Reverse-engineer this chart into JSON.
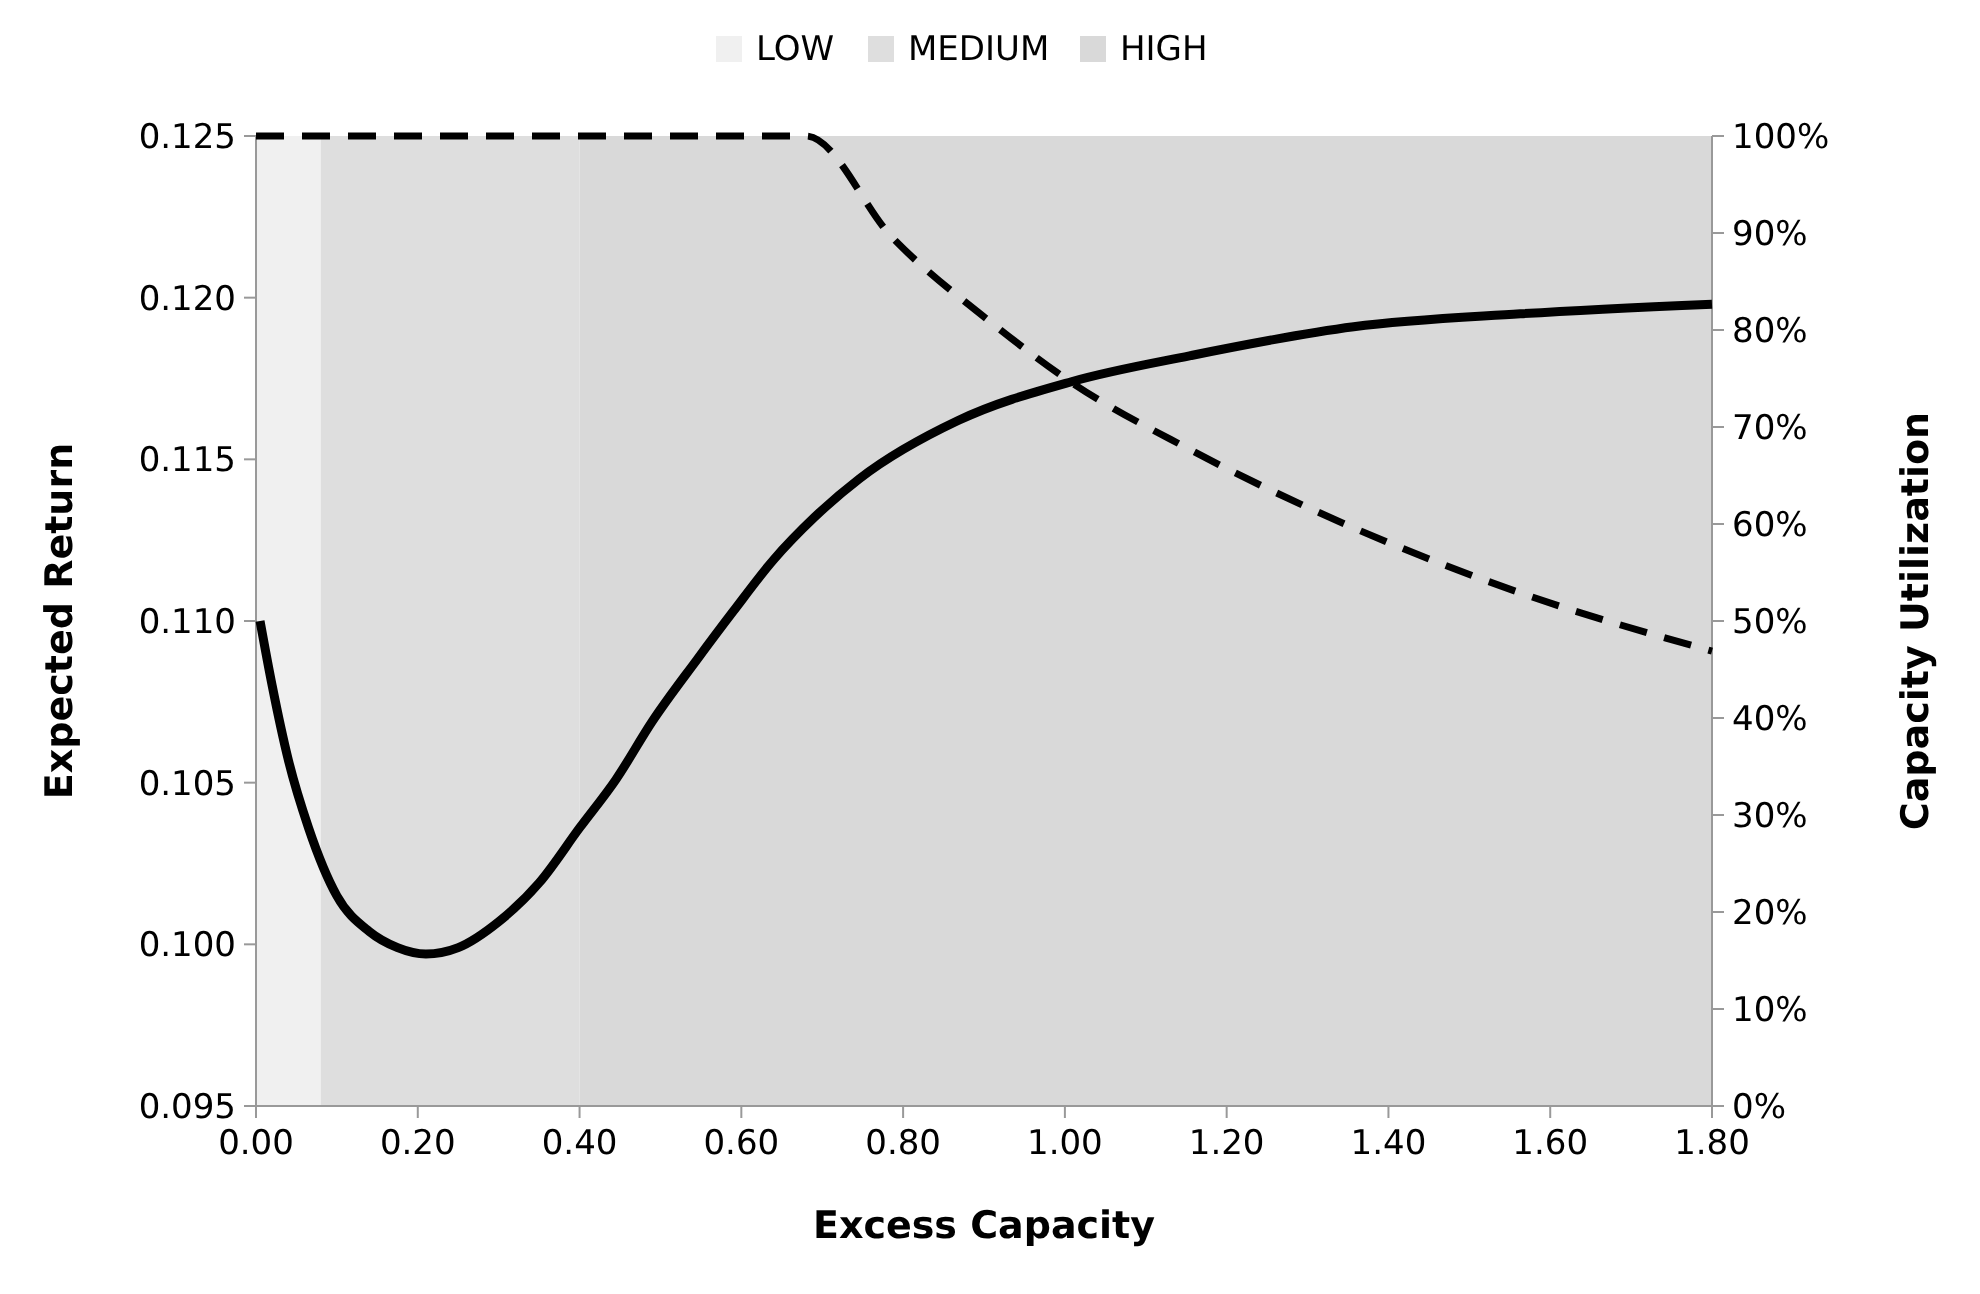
{
  "chart_data": {
    "type": "line",
    "xlabel": "Excess Capacity",
    "ylabel": "Expected Return",
    "y2label": "Capacity Utilization",
    "xlim": [
      0,
      1.8
    ],
    "ylim": [
      0.095,
      0.125
    ],
    "y2lim": [
      0,
      100
    ],
    "xticks": [
      {
        "value": 0,
        "label": "0.00"
      },
      {
        "value": 0.2,
        "label": "0.20"
      },
      {
        "value": 0.4,
        "label": "0.40"
      },
      {
        "value": 0.6,
        "label": "0.60"
      },
      {
        "value": 0.8,
        "label": "0.80"
      },
      {
        "value": 1,
        "label": "1.00"
      },
      {
        "value": 1.2,
        "label": "1.20"
      },
      {
        "value": 1.4,
        "label": "1.40"
      },
      {
        "value": 1.6,
        "label": "1.60"
      },
      {
        "value": 1.8,
        "label": "1.80"
      }
    ],
    "yticks": [
      {
        "value": 0.095,
        "label": "0.095"
      },
      {
        "value": 0.1,
        "label": "0.100"
      },
      {
        "value": 0.105,
        "label": "0.105"
      },
      {
        "value": 0.11,
        "label": "0.110"
      },
      {
        "value": 0.115,
        "label": "0.115"
      },
      {
        "value": 0.12,
        "label": "0.120"
      },
      {
        "value": 0.125,
        "label": "0.125"
      }
    ],
    "y2ticks": [
      {
        "value": 0,
        "label": "0%"
      },
      {
        "value": 10,
        "label": "10%"
      },
      {
        "value": 20,
        "label": "20%"
      },
      {
        "value": 30,
        "label": "30%"
      },
      {
        "value": 40,
        "label": "40%"
      },
      {
        "value": 50,
        "label": "50%"
      },
      {
        "value": 60,
        "label": "60%"
      },
      {
        "value": 70,
        "label": "70%"
      },
      {
        "value": 80,
        "label": "80%"
      },
      {
        "value": 90,
        "label": "90%"
      },
      {
        "value": 100,
        "label": "100%"
      }
    ],
    "grid": false,
    "legend": "top",
    "bands": [
      {
        "axis": "x",
        "from": 0,
        "to": 0.08,
        "label": "LOW",
        "color": "#f0f0f0"
      },
      {
        "axis": "x",
        "from": 0.08,
        "to": 0.4,
        "label": "MEDIUM",
        "color": "#dedede"
      },
      {
        "axis": "x",
        "from": 0.4,
        "to": 1.8,
        "label": "HIGH",
        "color": "#d9d9d9"
      }
    ],
    "series": [
      {
        "color": "#000000",
        "line_style": "solid",
        "x": [
          0.005,
          0.02,
          0.04,
          0.065,
          0.1,
          0.14,
          0.175,
          0.21,
          0.25,
          0.3,
          0.35,
          0.4,
          0.445,
          0.49,
          0.545,
          0.59,
          0.64,
          0.69,
          0.746,
          0.868,
          1.008,
          1.154,
          1.357,
          1.563,
          1.8
        ],
        "values": [
          0.11,
          0.108,
          0.1057,
          0.1036,
          0.1015,
          0.1004,
          0.0999,
          0.0997,
          0.0999,
          0.1007,
          0.1019,
          0.1036,
          0.1051,
          0.1069,
          0.1088,
          0.1103,
          0.1119,
          0.1132,
          0.1144,
          0.1162,
          0.1174,
          0.1182,
          0.1191,
          0.1195,
          0.1198
        ]
      },
      {
        "color": "#000000",
        "line_style": "dashed",
        "axis": "y2",
        "x": [
          0,
          0.3,
          0.68,
          0.787,
          0.91,
          1.008,
          1.154,
          1.357,
          1.563,
          1.8
        ],
        "values": [
          100,
          100,
          100,
          89.5,
          80.7,
          74.6,
          67.7,
          59.6,
          52.9,
          46.9
        ]
      }
    ]
  }
}
